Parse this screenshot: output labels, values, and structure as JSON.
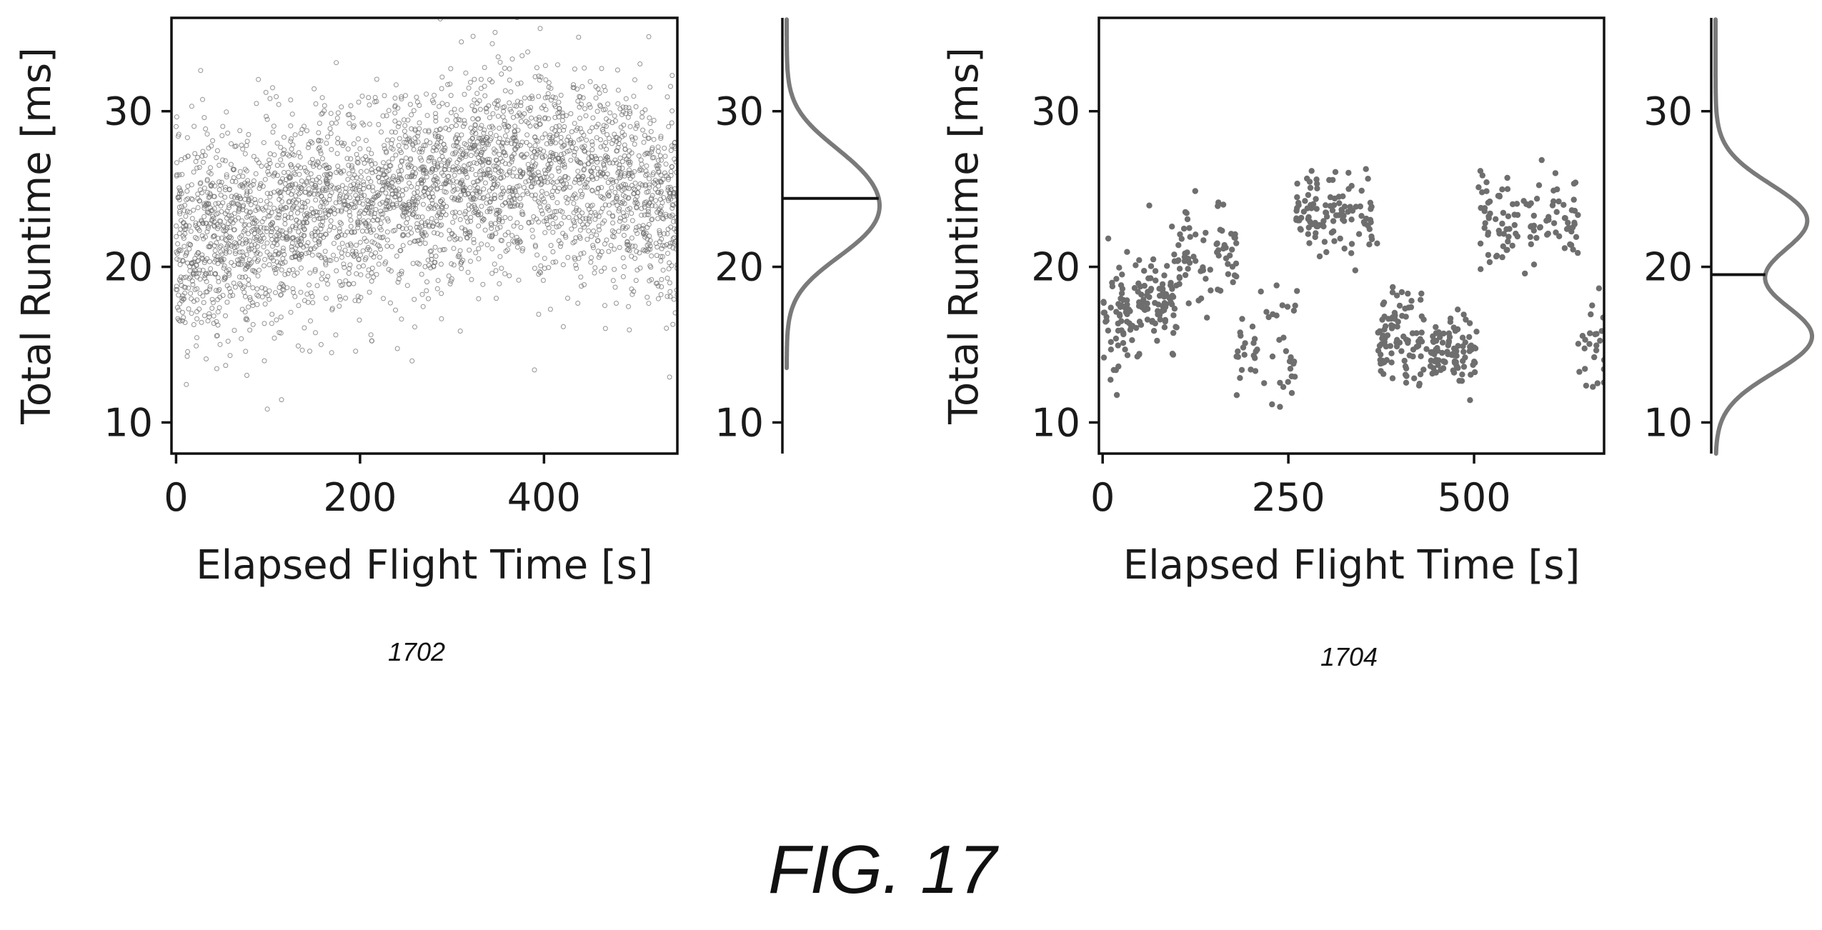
{
  "figure_label": "FIG. 17",
  "chart_data": [
    {
      "type": "scatter",
      "panel_label": "1702",
      "xlabel": "Elapsed Flight Time [s]",
      "ylabel": "Total Runtime [ms]",
      "xlim": [
        -5,
        545
      ],
      "ylim": [
        8,
        36
      ],
      "xticks": [
        0,
        200,
        400
      ],
      "yticks": [
        10,
        20,
        30
      ],
      "grid": false,
      "marker_style": "hollow small circles, dense",
      "color": "#6e6e6e",
      "trend_points": [
        {
          "x": 0,
          "y": 21.0
        },
        {
          "x": 50,
          "y": 22.2
        },
        {
          "x": 100,
          "y": 23.0
        },
        {
          "x": 150,
          "y": 23.6
        },
        {
          "x": 200,
          "y": 24.0
        },
        {
          "x": 250,
          "y": 24.6
        },
        {
          "x": 300,
          "y": 25.4
        },
        {
          "x": 350,
          "y": 25.9
        },
        {
          "x": 400,
          "y": 26.4
        },
        {
          "x": 450,
          "y": 26.2
        },
        {
          "x": 500,
          "y": 24.8
        },
        {
          "x": 545,
          "y": 24.0
        }
      ],
      "spread_ms": 3.2,
      "distribution": {
        "type": "density",
        "mean_line_y": 24.4,
        "peaks": [
          {
            "y": 22.5,
            "height": 1.0
          },
          {
            "y": 26.0,
            "height": 0.85
          }
        ],
        "range": [
          13.5,
          36
        ]
      }
    },
    {
      "type": "scatter",
      "panel_label": "1704",
      "xlabel": "Elapsed Flight Time [s]",
      "ylabel": "Total Runtime [ms]",
      "xlim": [
        -5,
        675
      ],
      "ylim": [
        8,
        36
      ],
      "xticks": [
        0,
        250,
        500
      ],
      "yticks": [
        10,
        20,
        30
      ],
      "grid": false,
      "marker_style": "filled circles",
      "color": "#6e6e6e",
      "clusters": [
        {
          "x": [
            0,
            40
          ],
          "y_center": 16.5,
          "spread": 3.0,
          "count": 60
        },
        {
          "x": [
            40,
            100
          ],
          "y_center": 18.0,
          "spread": 2.5,
          "count": 90
        },
        {
          "x": [
            100,
            180
          ],
          "y_center": 21.0,
          "spread": 2.5,
          "count": 70
        },
        {
          "x": [
            180,
            260
          ],
          "y_center": 15.0,
          "spread": 2.5,
          "count": 50
        },
        {
          "x": [
            260,
            370
          ],
          "y_center": 23.5,
          "spread": 2.0,
          "count": 110
        },
        {
          "x": [
            370,
            440
          ],
          "y_center": 15.5,
          "spread": 2.2,
          "count": 90
        },
        {
          "x": [
            440,
            505
          ],
          "y_center": 14.5,
          "spread": 1.5,
          "count": 90
        },
        {
          "x": [
            505,
            640
          ],
          "y_center": 23.0,
          "spread": 2.0,
          "count": 110
        },
        {
          "x": [
            640,
            675
          ],
          "y_center": 14.5,
          "spread": 1.8,
          "count": 25
        }
      ],
      "distribution": {
        "type": "density",
        "mean_line_y": 19.5,
        "peaks": [
          {
            "y": 15.5,
            "height": 1.0
          },
          {
            "y": 23.0,
            "height": 0.95
          }
        ],
        "range": [
          8,
          36
        ]
      }
    }
  ]
}
